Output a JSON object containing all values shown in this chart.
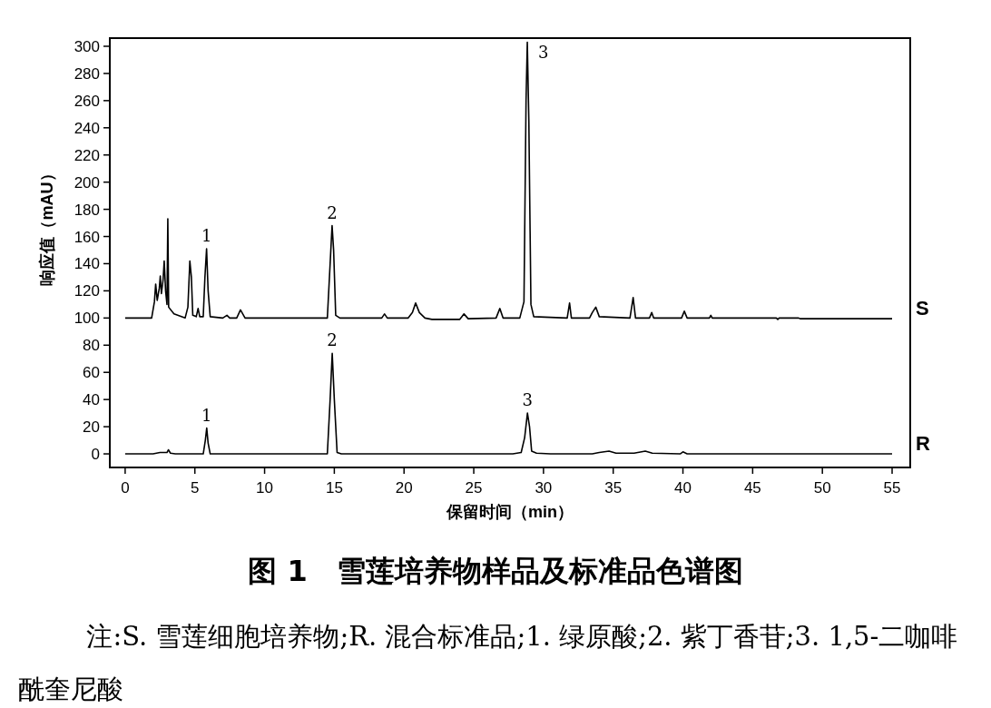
{
  "chart_data": {
    "type": "line",
    "title": "图 1　雪莲培养物样品及标准品色谱图",
    "xlabel": "保留时间（min）",
    "ylabel": "响应值（mAU）",
    "xlim": [
      -1.1,
      56.3
    ],
    "ylim": [
      -10,
      306
    ],
    "xticks": [
      0,
      5,
      10,
      15,
      20,
      25,
      30,
      35,
      40,
      45,
      50,
      55
    ],
    "yticks": [
      0,
      20,
      40,
      60,
      80,
      100,
      120,
      140,
      160,
      180,
      200,
      220,
      240,
      260,
      280,
      300
    ],
    "series": [
      {
        "name": "S",
        "color": "#000000",
        "x": [
          0,
          1.9,
          2.1,
          2.19,
          2.3,
          2.45,
          2.52,
          2.6,
          2.72,
          2.8,
          2.9,
          3.0,
          3.06,
          3.12,
          3.5,
          4.3,
          4.5,
          4.64,
          4.75,
          4.85,
          5.1,
          5.23,
          5.35,
          5.6,
          5.72,
          5.84,
          5.95,
          6.1,
          7.0,
          7.3,
          7.5,
          8.0,
          8.27,
          8.6,
          14.5,
          14.7,
          14.84,
          14.95,
          15.1,
          15.4,
          18.4,
          18.6,
          18.8,
          20.3,
          20.6,
          20.83,
          21.1,
          21.5,
          22,
          24,
          24.3,
          24.6,
          26.6,
          26.87,
          27.1,
          28.3,
          28.6,
          28.75,
          28.84,
          28.95,
          29.1,
          29.3,
          31.7,
          31.87,
          32.0,
          33.3,
          33.5,
          33.75,
          34.0,
          36.2,
          36.43,
          36.6,
          37.6,
          37.76,
          37.9,
          39.9,
          40.1,
          40.3,
          41.9,
          42,
          42.1,
          46.7,
          46.8,
          46.9,
          48.3,
          48.4,
          55
        ],
        "values": [
          100,
          100,
          112,
          125,
          113,
          122,
          131,
          118,
          128,
          142,
          120,
          110,
          173,
          108,
          103,
          100,
          108,
          142,
          130,
          102,
          101,
          107,
          101,
          101,
          130,
          151,
          120,
          101,
          100,
          102,
          100,
          100,
          106,
          100,
          100,
          140,
          168,
          150,
          102,
          100,
          100,
          103,
          100,
          100,
          104,
          111,
          104,
          100,
          99,
          99,
          103,
          99.5,
          100,
          107,
          100,
          100,
          112,
          260,
          303,
          245,
          110,
          101,
          100,
          111,
          100,
          100,
          104,
          108,
          101,
          100,
          115,
          100,
          100,
          104,
          100,
          100,
          105,
          100,
          100,
          102,
          100,
          100,
          99,
          100,
          100,
          99.5,
          99.5
        ]
      },
      {
        "name": "R",
        "color": "#000000",
        "x": [
          0,
          2.0,
          2.5,
          3.0,
          3.1,
          3.25,
          3.6,
          5.6,
          5.75,
          5.85,
          5.95,
          6.1,
          14.5,
          14.7,
          14.85,
          15.0,
          15.2,
          15.5,
          27.8,
          28.4,
          28.65,
          28.85,
          29.0,
          29.15,
          29.5,
          30.5,
          33.5,
          34.0,
          34.7,
          35.2,
          36.5,
          37.3,
          37.8,
          39.8,
          40,
          40.3,
          55
        ],
        "values": [
          0,
          0,
          1,
          1,
          3,
          0.5,
          0,
          0,
          10,
          19,
          8,
          0,
          0,
          40,
          74,
          40,
          1,
          0,
          0,
          1,
          12,
          30,
          20,
          2,
          0.5,
          0,
          0,
          1,
          2,
          0.5,
          0.5,
          2,
          0.5,
          0,
          1.5,
          0,
          0
        ]
      }
    ],
    "annotations": [
      {
        "text": "1",
        "x": 5.84,
        "y": 151
      },
      {
        "text": "2",
        "x": 14.84,
        "y": 168
      },
      {
        "text": "3",
        "x": 28.84,
        "y": 303
      },
      {
        "text": "1",
        "x": 5.85,
        "y": 19
      },
      {
        "text": "2",
        "x": 14.85,
        "y": 74
      },
      {
        "text": "3",
        "x": 28.85,
        "y": 30
      },
      "注:S. 雪莲细胞培养物;R. 混合标准品;1. 绿原酸;2. 紫丁香苷;3. 1,5-二咖啡酰奎尼酸"
    ]
  }
}
